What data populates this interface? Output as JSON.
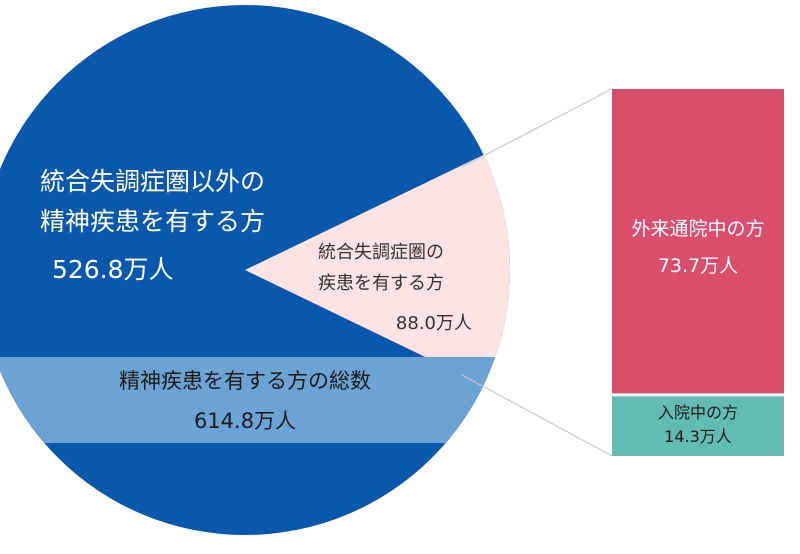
{
  "chart_data": [
    {
      "type": "pie",
      "slices": [
        {
          "label_line1": "統合失調症圏以外の",
          "label_line2": "精神疾患を有する方",
          "value_text": "526.8万人",
          "value": 526.8,
          "color": "#0a58ad"
        },
        {
          "label_line1": "統合失調症圏の",
          "label_line2": "疾患を有する方",
          "value_text": "88.0万人",
          "value": 88.0,
          "color": "#fde3e4"
        }
      ],
      "total": {
        "label": "精神疾患を有する方の総数",
        "value_text": "614.8万人",
        "value": 614.8,
        "band_color": "#6ba3d4"
      }
    },
    {
      "type": "bar",
      "stacked": true,
      "segments": [
        {
          "label": "外来通院中の方",
          "value_text": "73.7万人",
          "value": 73.7,
          "color": "#da4d6d"
        },
        {
          "label": "入院中の方",
          "value_text": "14.3万人",
          "value": 14.3,
          "color": "#63bcb1"
        }
      ]
    }
  ]
}
